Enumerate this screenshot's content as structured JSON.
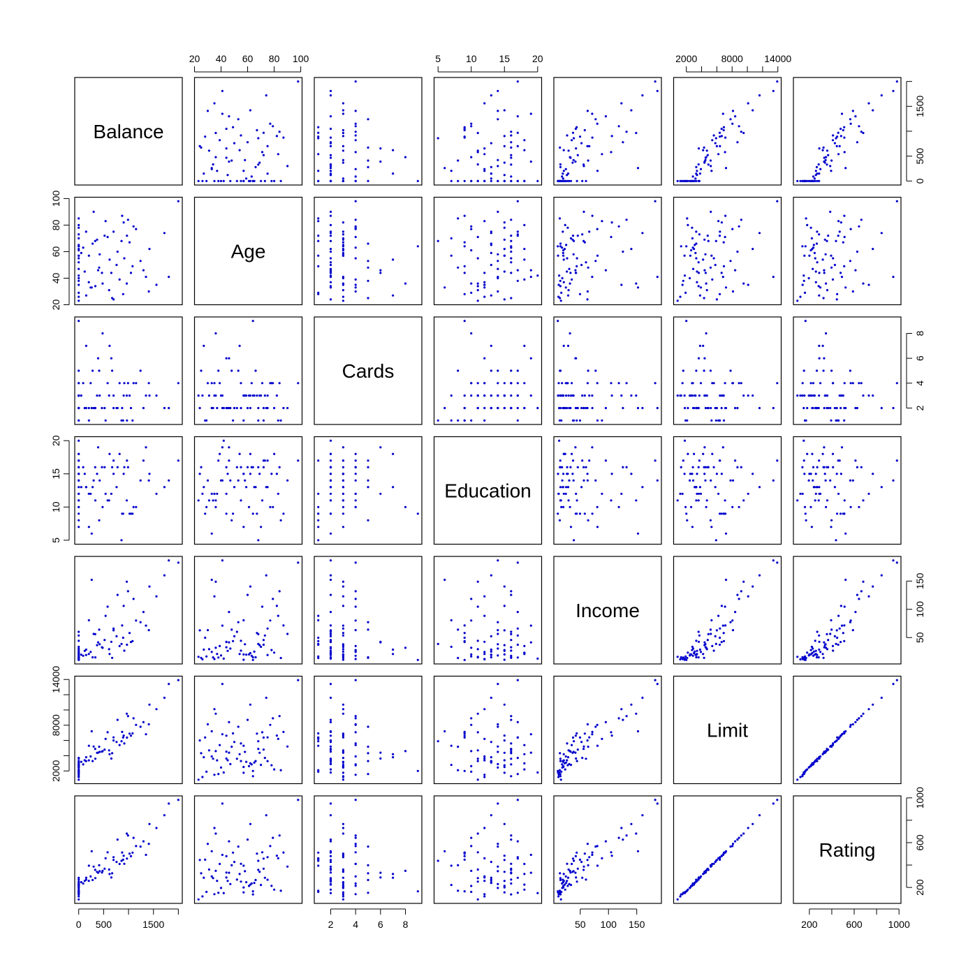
{
  "chart_data": {
    "type": "scatter",
    "subtype": "scatterplot-matrix",
    "title": "",
    "point_color": "#0000cc",
    "variables": [
      "Balance",
      "Age",
      "Cards",
      "Education",
      "Income",
      "Limit",
      "Rating"
    ],
    "ranges": {
      "Balance": [
        0,
        1999
      ],
      "Age": [
        23,
        98
      ],
      "Cards": [
        1,
        9
      ],
      "Education": [
        5,
        20
      ],
      "Income": [
        10.35,
        186.6
      ],
      "Limit": [
        855,
        13913
      ],
      "Rating": [
        93,
        982
      ]
    },
    "ticks": {
      "Balance": {
        "values": [
          0,
          500,
          1000,
          1500,
          2000
        ],
        "labels": [
          "0",
          "500",
          "",
          "1500",
          ""
        ]
      },
      "Age": {
        "values": [
          20,
          40,
          60,
          80,
          100
        ],
        "labels": [
          "20",
          "40",
          "60",
          "80",
          "100"
        ]
      },
      "Cards": {
        "values": [
          2,
          4,
          6,
          8
        ],
        "labels": [
          "2",
          "4",
          "6",
          "8"
        ]
      },
      "Education": {
        "values": [
          5,
          10,
          15,
          20
        ],
        "labels": [
          "5",
          "10",
          "15",
          "20"
        ]
      },
      "Income": {
        "values": [
          50,
          100,
          150
        ],
        "labels": [
          "50",
          "100",
          "150"
        ]
      },
      "Limit": {
        "values": [
          2000,
          4000,
          6000,
          8000,
          10000,
          12000,
          14000
        ],
        "labels": [
          "2000",
          "",
          "",
          "8000",
          "",
          "",
          "14000"
        ]
      },
      "Rating": {
        "values": [
          200,
          400,
          600,
          800,
          1000
        ],
        "labels": [
          "200",
          "",
          "600",
          "",
          "1000"
        ]
      }
    },
    "columns": [
      "Balance",
      "Age",
      "Cards",
      "Education",
      "Income",
      "Limit",
      "Rating"
    ],
    "observations": [
      [
        333,
        34,
        2,
        11,
        14.9,
        3606,
        283
      ],
      [
        903,
        82,
        3,
        15,
        106.0,
        6645,
        483
      ],
      [
        580,
        71,
        4,
        11,
        104.6,
        7075,
        514
      ],
      [
        964,
        36,
        3,
        11,
        148.9,
        9504,
        681
      ],
      [
        331,
        68,
        2,
        16,
        55.9,
        4897,
        357
      ],
      [
        1151,
        77,
        4,
        10,
        80.2,
        8047,
        569
      ],
      [
        203,
        37,
        2,
        12,
        21.0,
        3388,
        259
      ],
      [
        872,
        87,
        2,
        9,
        71.4,
        7114,
        512
      ],
      [
        279,
        66,
        5,
        13,
        15.1,
        3300,
        266
      ],
      [
        1350,
        41,
        3,
        19,
        71.1,
        6819,
        491
      ],
      [
        1407,
        30,
        4,
        14,
        63.1,
        8117,
        589
      ],
      [
        0,
        64,
        3,
        16,
        15.0,
        1311,
        138
      ],
      [
        204,
        57,
        1,
        7,
        80.6,
        5308,
        394
      ],
      [
        1081,
        49,
        1,
        9,
        43.7,
        6922,
        511
      ],
      [
        148,
        75,
        2,
        13,
        19.1,
        3291,
        269
      ],
      [
        0,
        57,
        3,
        15,
        20.1,
        2525,
        200
      ],
      [
        0,
        73,
        3,
        17,
        53.6,
        3714,
        286
      ],
      [
        368,
        69,
        3,
        15,
        36.5,
        4378,
        339
      ],
      [
        891,
        28,
        1,
        9,
        49.6,
        6384,
        448
      ],
      [
        1048,
        44,
        2,
        9,
        42.1,
        6626,
        479
      ],
      [
        89,
        63,
        4,
        16,
        17.7,
        2860,
        235
      ],
      [
        968,
        72,
        1,
        17,
        37.3,
        6378,
        458
      ],
      [
        0,
        61,
        3,
        10,
        20.1,
        2631,
        213
      ],
      [
        411,
        48,
        5,
        8,
        64.0,
        5179,
        398
      ],
      [
        0,
        57,
        3,
        15,
        10.7,
        1757,
        156
      ],
      [
        671,
        25,
        5,
        16,
        14.1,
        4323,
        326
      ],
      [
        654,
        44,
        6,
        12,
        42.5,
        3625,
        289
      ],
      [
        467,
        44,
        2,
        16,
        32.8,
        4534,
        333
      ],
      [
        1809,
        41,
        2,
        14,
        186.6,
        13414,
        949
      ],
      [
        915,
        55,
        4,
        16,
        26.8,
        5611,
        411
      ],
      [
        1999,
        98,
        4,
        17,
        182.7,
        13913,
        982
      ],
      [
        0,
        80,
        2,
        18,
        23.3,
        2200,
        180
      ],
      [
        0,
        35,
        4,
        12,
        12.0,
        1500,
        140
      ],
      [
        0,
        47,
        2,
        14,
        30.5,
        2900,
        230
      ],
      [
        0,
        65,
        3,
        13,
        25.0,
        3100,
        240
      ],
      [
        0,
        29,
        1,
        10,
        16.5,
        1900,
        160
      ],
      [
        0,
        55,
        2,
        11,
        44.2,
        3300,
        252
      ],
      [
        0,
        40,
        3,
        14,
        18.3,
        2450,
        195
      ],
      [
        0,
        78,
        4,
        15,
        27.9,
        2750,
        214
      ],
      [
        0,
        52,
        2,
        16,
        60.1,
        3600,
        270
      ],
      [
        0,
        26,
        3,
        12,
        11.4,
        1200,
        120
      ],
      [
        0,
        85,
        1,
        8,
        13.8,
        2100,
        170
      ],
      [
        0,
        62,
        2,
        18,
        22.5,
        3000,
        225
      ],
      [
        0,
        38,
        5,
        17,
        14.7,
        1600,
        152
      ],
      [
        0,
        70,
        3,
        7,
        33.6,
        2800,
        222
      ],
      [
        50,
        59,
        3,
        13,
        19.8,
        3200,
        247
      ],
      [
        120,
        45,
        2,
        15,
        26.4,
        3400,
        258
      ],
      [
        240,
        33,
        4,
        12,
        24.6,
        3900,
        298
      ],
      [
        420,
        58,
        3,
        14,
        38.1,
        4500,
        345
      ],
      [
        520,
        72,
        2,
        16,
        45.7,
        4800,
        367
      ],
      [
        610,
        31,
        3,
        11,
        29.4,
        4700,
        360
      ],
      [
        760,
        50,
        2,
        13,
        52.3,
        5800,
        428
      ],
      [
        820,
        39,
        4,
        18,
        35.0,
        5400,
        410
      ],
      [
        540,
        83,
        1,
        12,
        88.5,
        6200,
        460
      ],
      [
        700,
        24,
        2,
        15,
        62.7,
        6000,
        445
      ],
      [
        1020,
        67,
        3,
        9,
        58.0,
        6900,
        502
      ],
      [
        1240,
        53,
        5,
        14,
        77.2,
        7800,
        565
      ],
      [
        1300,
        46,
        2,
        17,
        95.3,
        8400,
        612
      ],
      [
        1100,
        79,
        4,
        10,
        118.4,
        8900,
        643
      ],
      [
        780,
        60,
        2,
        16,
        125.6,
        8700,
        627
      ],
      [
        1560,
        35,
        3,
        12,
        122.9,
        10100,
        731
      ],
      [
        1720,
        74,
        2,
        13,
        160.2,
        11600,
        845
      ],
      [
        1420,
        62,
        3,
        15,
        140.4,
        10700,
        766
      ],
      [
        300,
        90,
        2,
        14,
        56.5,
        5200,
        386
      ],
      [
        150,
        27,
        7,
        13,
        28.7,
        3800,
        287
      ],
      [
        390,
        46,
        6,
        19,
        41.5,
        4400,
        331
      ],
      [
        0,
        64,
        9,
        9,
        10.4,
        2000,
        165
      ],
      [
        620,
        54,
        7,
        18,
        20.9,
        4200,
        320
      ],
      [
        480,
        36,
        8,
        10,
        31.8,
        4600,
        348
      ],
      [
        0,
        42,
        2,
        20,
        12.7,
        1800,
        150
      ],
      [
        860,
        68,
        1,
        5,
        38.7,
        5900,
        438
      ],
      [
        990,
        84,
        4,
        16,
        132.0,
        9200,
        664
      ],
      [
        260,
        33,
        2,
        6,
        152.3,
        7200,
        523
      ],
      [
        0,
        23,
        3,
        11,
        15.9,
        855,
        93
      ],
      [
        700,
        75,
        3,
        17,
        66.0,
        6400,
        470
      ]
    ]
  }
}
